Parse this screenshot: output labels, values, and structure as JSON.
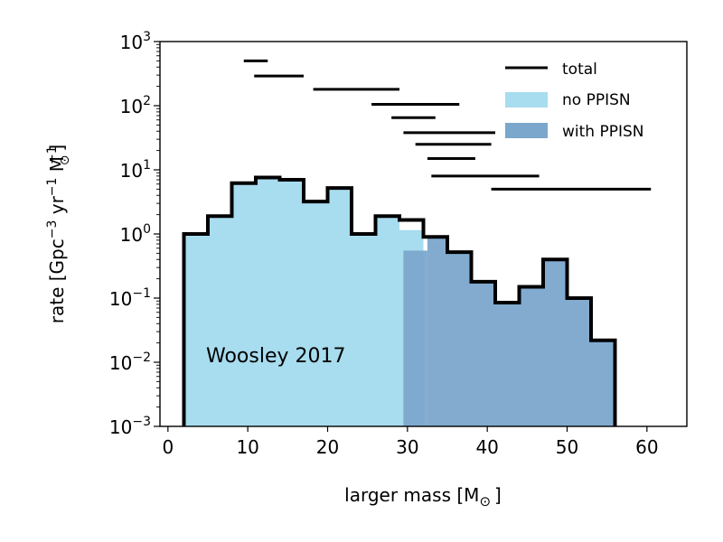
{
  "chart_data": {
    "type": "histogram",
    "title": "",
    "xlabel": "larger mass [M",
    "xlabel_sub": "⊙",
    "xlabel_close": "]",
    "ylabel_parts": {
      "pre": "rate [Gpc",
      "exp1": "−3",
      "mid": " yr",
      "exp2": "−1",
      "m": " M",
      "m_sub": "⊙",
      "m_exp": "−1",
      "close": "]"
    },
    "xlim": [
      -1,
      65
    ],
    "ylim_log10": [
      -3,
      3
    ],
    "xticks": [
      0,
      10,
      20,
      30,
      40,
      50,
      60
    ],
    "xtick_labels": [
      "0",
      "10",
      "20",
      "30",
      "40",
      "50",
      "60"
    ],
    "yticks_log10": [
      -3,
      -2,
      -1,
      0,
      1,
      2,
      3
    ],
    "ytick_base": "10",
    "ytick_exponents": [
      "−3",
      "−2",
      "−1",
      "0",
      "1",
      "2",
      "3"
    ],
    "annotation": "Woosley 2017",
    "legend": {
      "position": "top-right",
      "items": [
        {
          "key": "total",
          "label": "total",
          "kind": "line",
          "color": "#000000"
        },
        {
          "key": "no_ppisn",
          "label": "no PPISN",
          "kind": "patch",
          "color": "#a8dcef"
        },
        {
          "key": "with_ppisn",
          "label": "with PPISN",
          "kind": "patch",
          "color": "#7ba7cc"
        }
      ]
    },
    "bin_edges": [
      2,
      5,
      8,
      11,
      14,
      17,
      20,
      23,
      26,
      29,
      32,
      35,
      38,
      41,
      44,
      47,
      50,
      53,
      56
    ],
    "series": [
      {
        "name": "no PPISN",
        "color": "#a8dcef",
        "values": [
          1.0,
          1.9,
          6.2,
          7.6,
          7.0,
          3.2,
          5.2,
          1.0,
          1.9,
          1.15
        ]
      },
      {
        "name": "with PPISN",
        "color": "#7ba7cc",
        "x_start": 29.5,
        "values": [
          0.55,
          0.9,
          0.52,
          0.18,
          0.085,
          0.15,
          0.4,
          0.1,
          0.022
        ]
      },
      {
        "name": "total",
        "color": "#000000",
        "values": [
          1.0,
          1.9,
          6.2,
          7.6,
          7.0,
          3.2,
          5.2,
          1.0,
          1.9,
          1.65,
          0.9,
          0.52,
          0.18,
          0.085,
          0.15,
          0.4,
          0.1,
          0.022
        ]
      }
    ],
    "with_ppisn_edges": [
      29.5,
      32.5,
      35,
      38,
      41,
      44,
      47,
      50,
      53,
      56
    ],
    "ranges": [
      {
        "x0": 9.5,
        "x1": 12.5,
        "y": 500
      },
      {
        "x0": 10.8,
        "x1": 17.0,
        "y": 290
      },
      {
        "x0": 18.2,
        "x1": 29.0,
        "y": 180
      },
      {
        "x0": 25.5,
        "x1": 36.5,
        "y": 105
      },
      {
        "x0": 28.0,
        "x1": 33.5,
        "y": 65
      },
      {
        "x0": 29.5,
        "x1": 41.0,
        "y": 38
      },
      {
        "x0": 31.0,
        "x1": 40.5,
        "y": 25
      },
      {
        "x0": 32.5,
        "x1": 38.5,
        "y": 15
      },
      {
        "x0": 33.0,
        "x1": 46.5,
        "y": 8
      },
      {
        "x0": 40.5,
        "x1": 60.5,
        "y": 5
      }
    ]
  }
}
